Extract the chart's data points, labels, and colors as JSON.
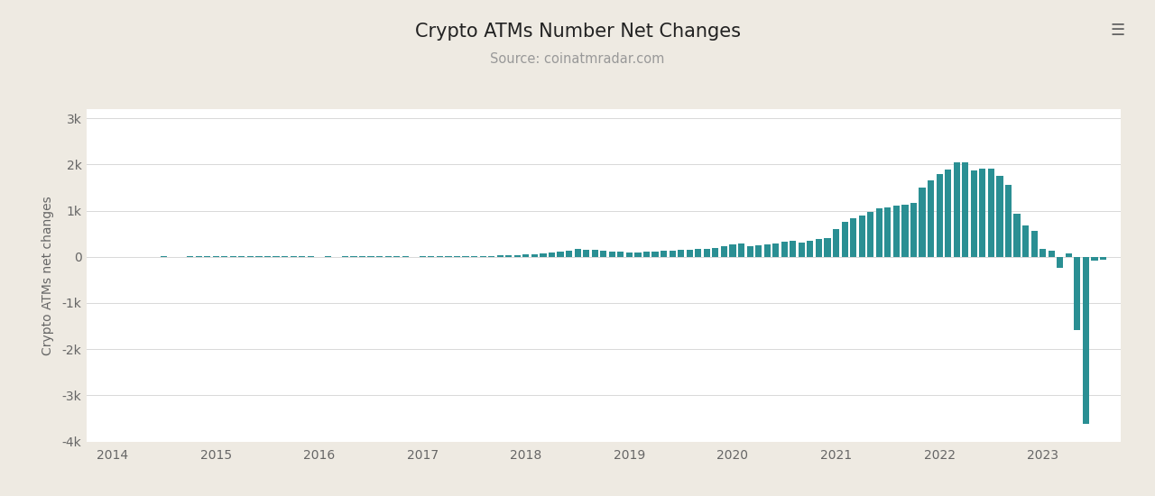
{
  "title": "Crypto ATMs Number Net Changes",
  "subtitle": "Source: coinatmradar.com",
  "ylabel": "Crypto ATMs net changes",
  "bar_color": "#2a8f93",
  "bg_color": "#ffffff",
  "outer_bg_color": "#eeeae2",
  "ylim": [
    -4000,
    3200
  ],
  "yticks": [
    -4000,
    -3000,
    -2000,
    -1000,
    0,
    1000,
    2000,
    3000
  ],
  "ytick_labels": [
    "-4k",
    "-3k",
    "-2k",
    "-1k",
    "0",
    "1k",
    "2k",
    "3k"
  ],
  "values": [
    2,
    3,
    4,
    3,
    5,
    4,
    6,
    5,
    4,
    6,
    7,
    6,
    10,
    10,
    9,
    10,
    11,
    10,
    9,
    10,
    8,
    11,
    12,
    11,
    5,
    8,
    4,
    7,
    8,
    7,
    7,
    9,
    8,
    7,
    10,
    4,
    8,
    10,
    11,
    10,
    12,
    15,
    17,
    18,
    20,
    25,
    32,
    40,
    55,
    60,
    75,
    85,
    110,
    140,
    165,
    155,
    145,
    130,
    120,
    110,
    90,
    100,
    110,
    120,
    130,
    140,
    150,
    155,
    165,
    175,
    200,
    235,
    260,
    290,
    230,
    245,
    265,
    295,
    330,
    350,
    310,
    340,
    380,
    400,
    600,
    750,
    830,
    900,
    980,
    1050,
    1080,
    1100,
    1120,
    1170,
    1500,
    1650,
    1800,
    1900,
    2050,
    2050,
    1870,
    1920,
    1920,
    1760,
    1550,
    930,
    680,
    570,
    180,
    130,
    -230,
    80,
    -1580,
    -3620,
    -75,
    -55
  ],
  "xtick_years": [
    "2014",
    "2015",
    "2016",
    "2017",
    "2018",
    "2019",
    "2020",
    "2021",
    "2022",
    "2023"
  ],
  "xtick_month_offsets": [
    0,
    12,
    24,
    36,
    48,
    60,
    72,
    84,
    96,
    108
  ]
}
